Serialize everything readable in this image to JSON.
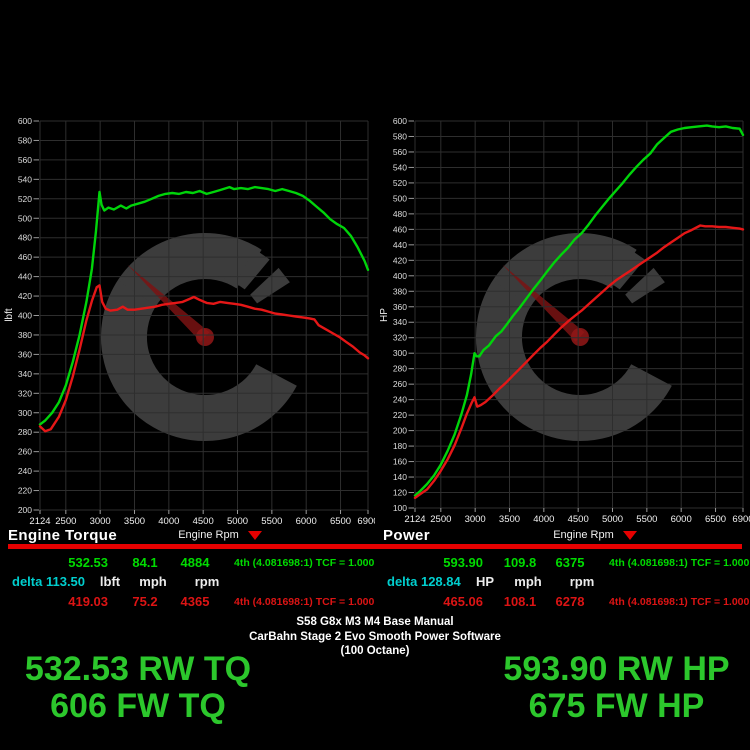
{
  "chart_data": {
    "type": "line",
    "x_axis_note": "rpm, linear 2124-6900, gridlines every 500 rpm",
    "charts": [
      {
        "title": "Engine Torque",
        "xlabel": "Engine Rpm",
        "ylabel": "lbft",
        "xlim": [
          2124,
          6900
        ],
        "ylim": [
          200,
          600
        ],
        "ytick_step": 20,
        "xticks": [
          2124,
          2500,
          3000,
          3500,
          4000,
          4500,
          5000,
          5500,
          6000,
          6500,
          6900
        ],
        "grid": "on",
        "series": [
          {
            "name": "tuned-torque",
            "color": "#00d40a",
            "points": [
              [
                2124,
                288
              ],
              [
                2200,
                292
              ],
              [
                2300,
                300
              ],
              [
                2400,
                311
              ],
              [
                2500,
                328
              ],
              [
                2600,
                352
              ],
              [
                2700,
                380
              ],
              [
                2800,
                414
              ],
              [
                2880,
                448
              ],
              [
                2940,
                487
              ],
              [
                2990,
                527
              ],
              [
                3020,
                514
              ],
              [
                3060,
                508
              ],
              [
                3120,
                511
              ],
              [
                3200,
                509
              ],
              [
                3300,
                513
              ],
              [
                3380,
                510
              ],
              [
                3450,
                513
              ],
              [
                3550,
                515
              ],
              [
                3650,
                517
              ],
              [
                3750,
                520
              ],
              [
                3850,
                523
              ],
              [
                3950,
                525
              ],
              [
                4050,
                526
              ],
              [
                4150,
                525
              ],
              [
                4250,
                527
              ],
              [
                4350,
                526
              ],
              [
                4450,
                528
              ],
              [
                4550,
                525
              ],
              [
                4650,
                527
              ],
              [
                4750,
                529
              ],
              [
                4884,
                532
              ],
              [
                4950,
                530
              ],
              [
                5050,
                531
              ],
              [
                5150,
                530
              ],
              [
                5250,
                532
              ],
              [
                5350,
                531
              ],
              [
                5450,
                530
              ],
              [
                5550,
                528
              ],
              [
                5650,
                530
              ],
              [
                5750,
                528
              ],
              [
                5850,
                526
              ],
              [
                5950,
                523
              ],
              [
                6050,
                518
              ],
              [
                6150,
                512
              ],
              [
                6250,
                506
              ],
              [
                6350,
                499
              ],
              [
                6450,
                494
              ],
              [
                6550,
                490
              ],
              [
                6650,
                482
              ],
              [
                6750,
                470
              ],
              [
                6850,
                456
              ],
              [
                6900,
                447
              ]
            ]
          },
          {
            "name": "stock-torque",
            "color": "#e51717",
            "points": [
              [
                2124,
                286
              ],
              [
                2200,
                281
              ],
              [
                2280,
                283
              ],
              [
                2400,
                296
              ],
              [
                2500,
                313
              ],
              [
                2600,
                337
              ],
              [
                2700,
                365
              ],
              [
                2800,
                395
              ],
              [
                2880,
                415
              ],
              [
                2950,
                429
              ],
              [
                2990,
                431
              ],
              [
                3030,
                414
              ],
              [
                3080,
                407
              ],
              [
                3150,
                405
              ],
              [
                3250,
                406
              ],
              [
                3330,
                409
              ],
              [
                3400,
                406
              ],
              [
                3500,
                406
              ],
              [
                3600,
                407
              ],
              [
                3700,
                408
              ],
              [
                3800,
                409
              ],
              [
                3900,
                411
              ],
              [
                4000,
                412
              ],
              [
                4100,
                413
              ],
              [
                4200,
                414
              ],
              [
                4300,
                417
              ],
              [
                4365,
                419
              ],
              [
                4450,
                416
              ],
              [
                4550,
                413
              ],
              [
                4650,
                412
              ],
              [
                4750,
                414
              ],
              [
                4850,
                413
              ],
              [
                4950,
                412
              ],
              [
                5050,
                411
              ],
              [
                5150,
                409
              ],
              [
                5250,
                407
              ],
              [
                5350,
                406
              ],
              [
                5450,
                404
              ],
              [
                5550,
                402
              ],
              [
                5650,
                401
              ],
              [
                5750,
                400
              ],
              [
                5850,
                399
              ],
              [
                5950,
                398
              ],
              [
                6050,
                397
              ],
              [
                6120,
                396
              ],
              [
                6180,
                390
              ],
              [
                6280,
                386
              ],
              [
                6380,
                382
              ],
              [
                6480,
                378
              ],
              [
                6580,
                373
              ],
              [
                6680,
                368
              ],
              [
                6780,
                362
              ],
              [
                6850,
                359
              ],
              [
                6900,
                356
              ]
            ]
          }
        ]
      },
      {
        "title": "Power",
        "xlabel": "Engine Rpm",
        "ylabel": "HP",
        "xlim": [
          2124,
          6900
        ],
        "ylim": [
          100,
          600
        ],
        "ytick_step": 20,
        "xticks": [
          2124,
          2500,
          3000,
          3500,
          4000,
          4500,
          5000,
          5500,
          6000,
          6500,
          6900
        ],
        "grid": "on",
        "series": [
          {
            "name": "tuned-power",
            "color": "#00d40a",
            "points": [
              [
                2124,
                116
              ],
              [
                2200,
                122
              ],
              [
                2300,
                131
              ],
              [
                2400,
                142
              ],
              [
                2500,
                156
              ],
              [
                2600,
                174
              ],
              [
                2700,
                195
              ],
              [
                2800,
                221
              ],
              [
                2880,
                246
              ],
              [
                2940,
                272
              ],
              [
                2990,
                300
              ],
              [
                3020,
                296
              ],
              [
                3060,
                296
              ],
              [
                3120,
                304
              ],
              [
                3200,
                310
              ],
              [
                3300,
                322
              ],
              [
                3380,
                328
              ],
              [
                3450,
                336
              ],
              [
                3550,
                348
              ],
              [
                3650,
                359
              ],
              [
                3750,
                371
              ],
              [
                3850,
                383
              ],
              [
                3950,
                394
              ],
              [
                4050,
                406
              ],
              [
                4150,
                417
              ],
              [
                4250,
                427
              ],
              [
                4350,
                436
              ],
              [
                4450,
                447
              ],
              [
                4550,
                455
              ],
              [
                4650,
                466
              ],
              [
                4750,
                478
              ],
              [
                4850,
                489
              ],
              [
                4950,
                500
              ],
              [
                5050,
                510
              ],
              [
                5150,
                520
              ],
              [
                5250,
                531
              ],
              [
                5350,
                541
              ],
              [
                5450,
                550
              ],
              [
                5550,
                558
              ],
              [
                5650,
                570
              ],
              [
                5750,
                578
              ],
              [
                5850,
                586
              ],
              [
                5950,
                589
              ],
              [
                6050,
                591
              ],
              [
                6150,
                592
              ],
              [
                6250,
                593
              ],
              [
                6375,
                594
              ],
              [
                6450,
                593
              ],
              [
                6550,
                592
              ],
              [
                6650,
                593
              ],
              [
                6750,
                591
              ],
              [
                6850,
                590
              ],
              [
                6900,
                582
              ]
            ]
          },
          {
            "name": "stock-power",
            "color": "#e51717",
            "points": [
              [
                2124,
                113
              ],
              [
                2200,
                118
              ],
              [
                2300,
                124
              ],
              [
                2400,
                135
              ],
              [
                2500,
                148
              ],
              [
                2600,
                163
              ],
              [
                2700,
                181
              ],
              [
                2800,
                203
              ],
              [
                2880,
                222
              ],
              [
                2950,
                236
              ],
              [
                2990,
                243
              ],
              [
                3030,
                231
              ],
              [
                3080,
                233
              ],
              [
                3150,
                237
              ],
              [
                3250,
                245
              ],
              [
                3350,
                254
              ],
              [
                3450,
                262
              ],
              [
                3550,
                271
              ],
              [
                3650,
                280
              ],
              [
                3750,
                289
              ],
              [
                3850,
                298
              ],
              [
                3950,
                307
              ],
              [
                4050,
                315
              ],
              [
                4150,
                324
              ],
              [
                4250,
                333
              ],
              [
                4365,
                342
              ],
              [
                4450,
                348
              ],
              [
                4550,
                355
              ],
              [
                4650,
                363
              ],
              [
                4750,
                371
              ],
              [
                4850,
                379
              ],
              [
                4950,
                387
              ],
              [
                5050,
                394
              ],
              [
                5150,
                400
              ],
              [
                5250,
                406
              ],
              [
                5350,
                412
              ],
              [
                5450,
                418
              ],
              [
                5550,
                424
              ],
              [
                5650,
                430
              ],
              [
                5750,
                437
              ],
              [
                5850,
                443
              ],
              [
                5950,
                449
              ],
              [
                6050,
                455
              ],
              [
                6150,
                459
              ],
              [
                6278,
                465
              ],
              [
                6350,
                464
              ],
              [
                6450,
                464
              ],
              [
                6550,
                463
              ],
              [
                6650,
                463
              ],
              [
                6750,
                462
              ],
              [
                6850,
                461
              ],
              [
                6900,
                460
              ]
            ]
          }
        ]
      }
    ]
  },
  "readouts": [
    {
      "delta_label": "delta",
      "delta_value": "113.50",
      "units": [
        "lbft",
        "mph",
        "rpm"
      ],
      "tuned": {
        "value": "532.53",
        "speed": "84.1",
        "rpm": "4884",
        "gear": "4th (4.081698:1) TCF = 1.000"
      },
      "stock": {
        "value": "419.03",
        "speed": "75.2",
        "rpm": "4365",
        "gear": "4th (4.081698:1) TCF = 1.000"
      }
    },
    {
      "delta_label": "delta",
      "delta_value": "128.84",
      "units": [
        "HP",
        "mph",
        "rpm"
      ],
      "tuned": {
        "value": "593.90",
        "speed": "109.8",
        "rpm": "6375",
        "gear": "4th (4.081698:1) TCF = 1.000"
      },
      "stock": {
        "value": "465.06",
        "speed": "108.1",
        "rpm": "6278",
        "gear": "4th (4.081698:1) TCF = 1.000"
      }
    }
  ],
  "footer": {
    "title_lines": [
      "S58 G8x M3 M4 Base Manual",
      "CarBahn Stage 2 Evo Smooth Power Software",
      "(100 Octane)"
    ],
    "left_summary": [
      "532.53 RW TQ",
      "606 FW TQ"
    ],
    "right_summary": [
      "593.90 RW HP",
      "675 FW HP"
    ]
  },
  "colors": {
    "background": "#000000",
    "tuned_curve_green": "#00d40a",
    "stock_curve_red": "#e51717",
    "table_green": "#00dc00",
    "table_red": "#dc1414",
    "delta_cyan": "#00cfcf",
    "divider_red": "#e60000",
    "summary_green": "#2cc72c",
    "grid_gray": "#2e2e2e",
    "watermark_gray": "#3c3c3c"
  }
}
